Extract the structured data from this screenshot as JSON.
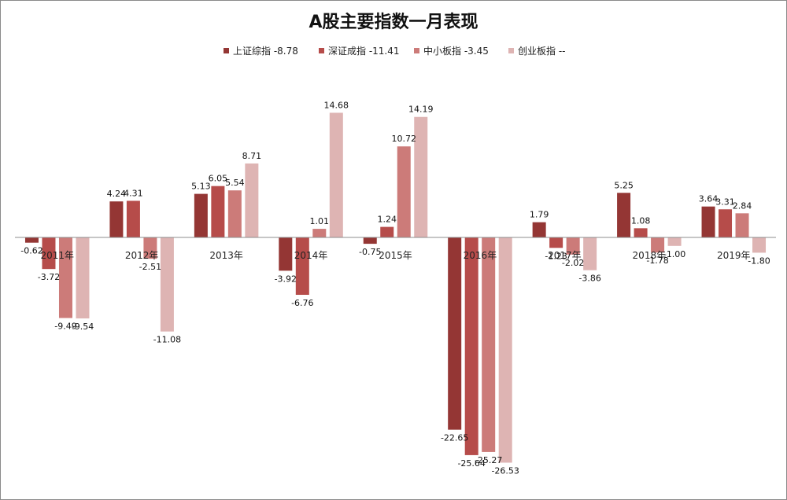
{
  "chart_data": {
    "type": "bar",
    "title": "A股主要指数一月表现",
    "categories": [
      "2011年",
      "2012年",
      "2013年",
      "2014年",
      "2015年",
      "2016年",
      "2017年",
      "2018年",
      "2019年"
    ],
    "series": [
      {
        "name": "上证综指",
        "legend": "上证综指 -8.78",
        "color": "#943634",
        "values": [
          -0.62,
          4.24,
          5.13,
          -3.92,
          -0.75,
          -22.65,
          1.79,
          5.25,
          3.64
        ],
        "labels": [
          "-0.62",
          "4.24",
          "5.13",
          "-3.92",
          "-0.75",
          "-22.65",
          "1.79",
          "5.25",
          "3.64"
        ]
      },
      {
        "name": "深证成指",
        "legend": "深证成指 -11.41",
        "color": "#b64c4a",
        "values": [
          -3.72,
          4.31,
          6.05,
          -6.76,
          1.24,
          -25.64,
          -1.23,
          1.08,
          3.31
        ],
        "labels": [
          "-3.72",
          "4.31",
          "6.05",
          "-6.76",
          "1.24",
          "-25.64",
          "-1.23",
          "1.08",
          "3.31"
        ]
      },
      {
        "name": "中小板指",
        "legend": "中小板指 -3.45",
        "color": "#cc7b79",
        "values": [
          -9.49,
          -2.51,
          5.54,
          1.01,
          10.72,
          -25.27,
          -2.02,
          -1.78,
          2.84
        ],
        "labels": [
          "-9.49",
          "-2.51",
          "5.54",
          "1.01",
          "10.72",
          "-25.27",
          "-2.02",
          "-1.78",
          "2.84"
        ]
      },
      {
        "name": "创业板指",
        "legend": "创业板指 --",
        "color": "#deb4b3",
        "values": [
          -9.54,
          -11.08,
          8.71,
          14.68,
          14.19,
          -26.53,
          -3.86,
          -1.0,
          -1.8
        ],
        "labels": [
          "-9.54",
          "-11.08",
          "8.71",
          "14.68",
          "14.19",
          "-26.53",
          "-3.86",
          "-1.00",
          "-1.80"
        ]
      }
    ],
    "ylim": [
      -28,
      16
    ],
    "grid": false,
    "legend_position": "top-center"
  }
}
